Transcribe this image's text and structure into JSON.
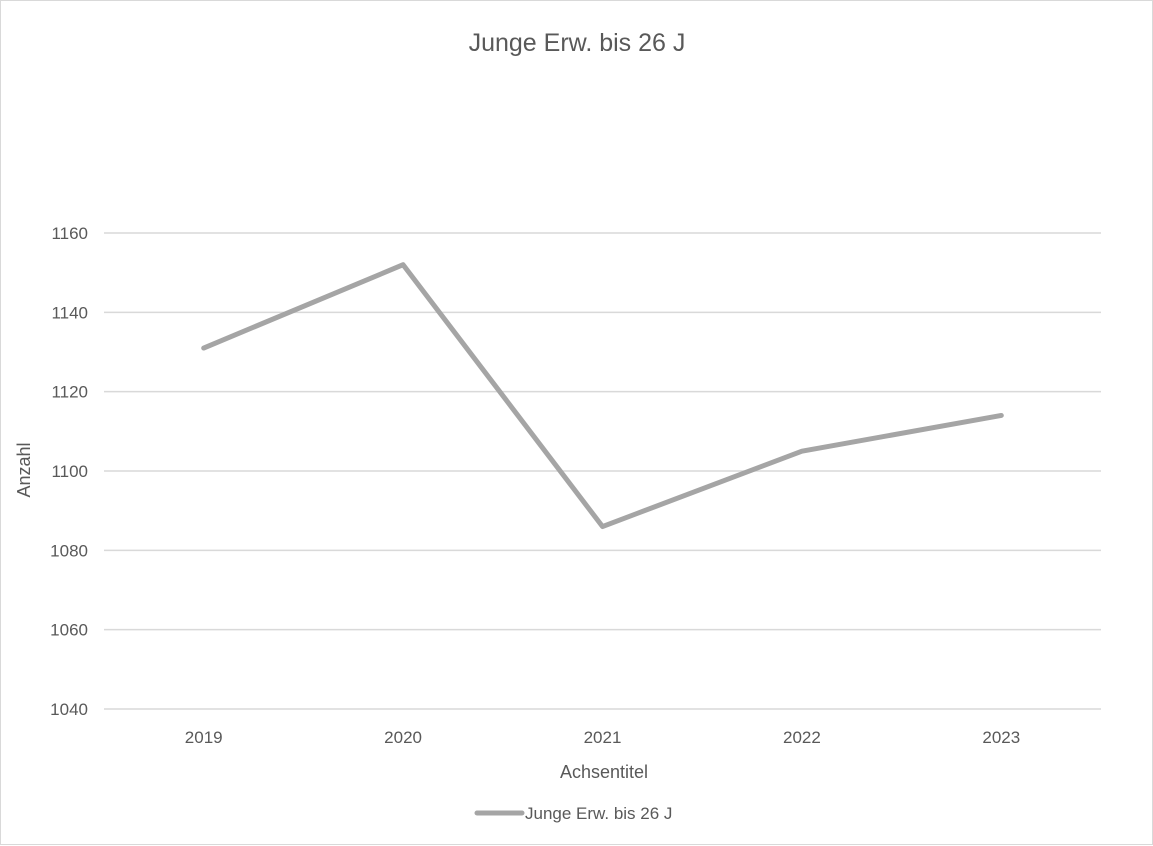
{
  "chart_data": {
    "type": "line",
    "title": "Junge Erw. bis 26 J",
    "xlabel": "Achsentitel",
    "ylabel": "Anzahl",
    "categories": [
      "2019",
      "2020",
      "2021",
      "2022",
      "2023"
    ],
    "series": [
      {
        "name": "Junge Erw. bis 26 J",
        "values": [
          1131,
          1152,
          1086,
          1105,
          1114
        ],
        "color": "#a5a5a5"
      }
    ],
    "ylim": [
      1040,
      1160
    ],
    "yticks": [
      1040,
      1060,
      1080,
      1100,
      1120,
      1140,
      1160
    ],
    "ytick_labels": [
      "1040",
      "1060",
      "1080",
      "1100",
      "1120",
      "1140",
      "1160"
    ],
    "grid": true,
    "legend_position": "bottom",
    "gridline_color": "#d9d9d9",
    "text_color": "#595959"
  }
}
